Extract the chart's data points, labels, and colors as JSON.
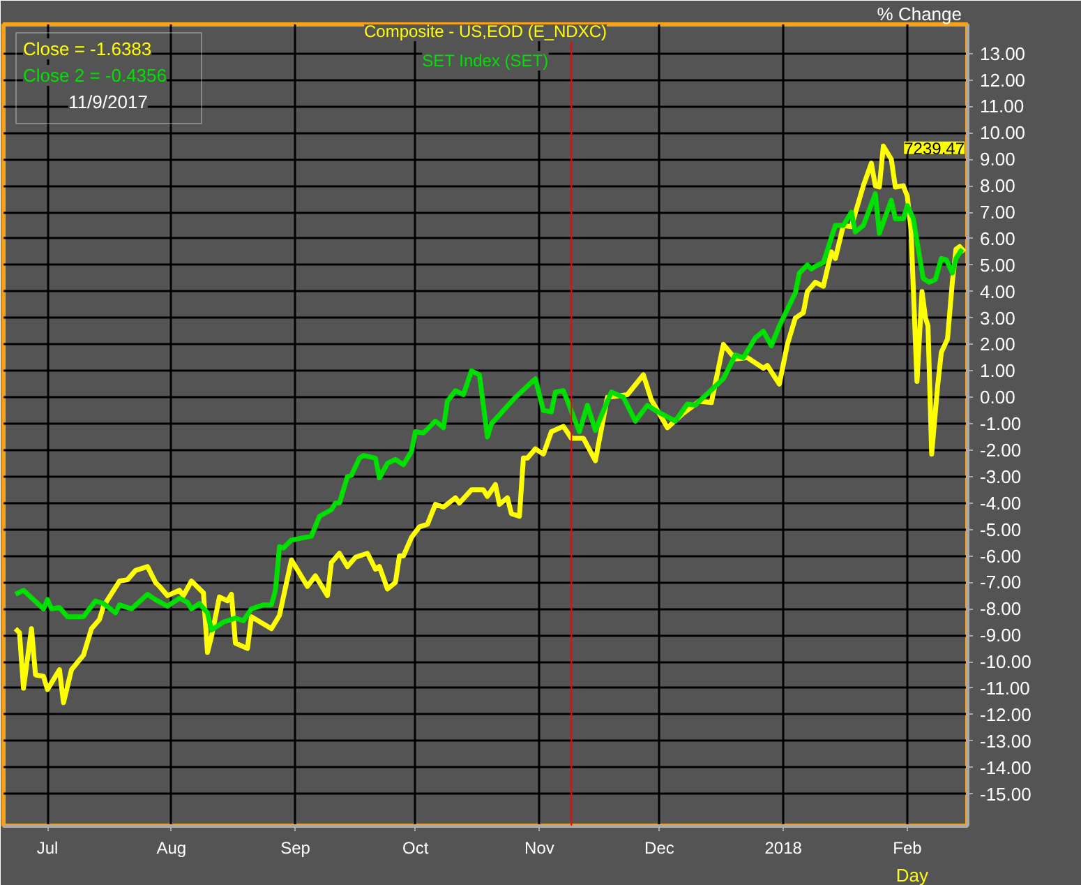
{
  "chart_data": {
    "type": "line",
    "xlabel": "Day",
    "ylabel": "% Change",
    "xlim": [
      "2017-06-20",
      "2018-02-16"
    ],
    "ylim": [
      -16.2,
      14.1
    ],
    "xticks": [
      {
        "value": "2017-07-01",
        "label": "Jul"
      },
      {
        "value": "2017-08-01",
        "label": "Aug"
      },
      {
        "value": "2017-09-01",
        "label": "Sep"
      },
      {
        "value": "2017-10-01",
        "label": "Oct"
      },
      {
        "value": "2017-11-01",
        "label": "Nov"
      },
      {
        "value": "2017-12-01",
        "label": "Dec"
      },
      {
        "value": "2018-01-01",
        "label": "2018"
      },
      {
        "value": "2018-02-01",
        "label": "Feb"
      }
    ],
    "yticks": [
      {
        "value": 13,
        "label": "13.00"
      },
      {
        "value": 12,
        "label": "12.00"
      },
      {
        "value": 11,
        "label": "11.00"
      },
      {
        "value": 10,
        "label": "10.00"
      },
      {
        "value": 9,
        "label": "9.00"
      },
      {
        "value": 8,
        "label": "8.00"
      },
      {
        "value": 7,
        "label": "7.00"
      },
      {
        "value": 6,
        "label": "6.00"
      },
      {
        "value": 5,
        "label": "5.00"
      },
      {
        "value": 4,
        "label": "4.00"
      },
      {
        "value": 3,
        "label": "3.00"
      },
      {
        "value": 2,
        "label": "2.00"
      },
      {
        "value": 1,
        "label": "1.00"
      },
      {
        "value": 0,
        "label": "0.00"
      },
      {
        "value": -1,
        "label": "-1.00"
      },
      {
        "value": -2,
        "label": "-2.00"
      },
      {
        "value": -3,
        "label": "-3.00"
      },
      {
        "value": -4,
        "label": "-4.00"
      },
      {
        "value": -5,
        "label": "-5.00"
      },
      {
        "value": -6,
        "label": "-6.00"
      },
      {
        "value": -7,
        "label": "-7.00"
      },
      {
        "value": -8,
        "label": "-8.00"
      },
      {
        "value": -9,
        "label": "-9.00"
      },
      {
        "value": -10,
        "label": "-10.00"
      },
      {
        "value": -11,
        "label": "-11.00"
      },
      {
        "value": -12,
        "label": "-12.00"
      },
      {
        "value": -13,
        "label": "-13.00"
      },
      {
        "value": -14,
        "label": "-14.00"
      },
      {
        "value": -15,
        "label": "-15.00"
      }
    ],
    "grid": true,
    "legend": "top",
    "marker": "none",
    "line_style": "solid",
    "series": [
      {
        "name": "Composite - US,EOD (E_NDXC)",
        "color": "#ffff00",
        "x": [
          "2017-06-23",
          "2017-06-24",
          "2017-06-25",
          "2017-06-27",
          "2017-06-28",
          "2017-06-30",
          "2017-07-01",
          "2017-07-04",
          "2017-07-05",
          "2017-07-07",
          "2017-07-10",
          "2017-07-12",
          "2017-07-14",
          "2017-07-15",
          "2017-07-19",
          "2017-07-21",
          "2017-07-23",
          "2017-07-26",
          "2017-07-28",
          "2017-07-29",
          "2017-07-31",
          "2017-08-03",
          "2017-08-04",
          "2017-08-06",
          "2017-08-09",
          "2017-08-10",
          "2017-08-11",
          "2017-08-13",
          "2017-08-15",
          "2017-08-16",
          "2017-08-17",
          "2017-08-20",
          "2017-08-21",
          "2017-08-26",
          "2017-08-28",
          "2017-08-31",
          "2017-09-04",
          "2017-09-06",
          "2017-09-09",
          "2017-09-10",
          "2017-09-12",
          "2017-09-14",
          "2017-09-16",
          "2017-09-19",
          "2017-09-21",
          "2017-09-22",
          "2017-09-24",
          "2017-09-26",
          "2017-09-27",
          "2017-09-28",
          "2017-09-30",
          "2017-10-02",
          "2017-10-04",
          "2017-10-06",
          "2017-10-08",
          "2017-10-11",
          "2017-10-12",
          "2017-10-15",
          "2017-10-18",
          "2017-10-19",
          "2017-10-21",
          "2017-10-22",
          "2017-10-24",
          "2017-10-25",
          "2017-10-27",
          "2017-10-28",
          "2017-10-29",
          "2017-10-31",
          "2017-11-02",
          "2017-11-04",
          "2017-11-07",
          "2017-11-09",
          "2017-11-12",
          "2017-11-15",
          "2017-11-18",
          "2017-11-23",
          "2017-11-27",
          "2017-11-29",
          "2017-12-03",
          "2017-12-07",
          "2017-12-11",
          "2017-12-14",
          "2017-12-17",
          "2017-12-20",
          "2017-12-23",
          "2017-12-27",
          "2017-12-28",
          "2017-12-31",
          "2018-01-02",
          "2018-01-04",
          "2018-01-06",
          "2018-01-07",
          "2018-01-09",
          "2018-01-11",
          "2018-01-13",
          "2018-01-14",
          "2018-01-16",
          "2018-01-18",
          "2018-01-21",
          "2018-01-23",
          "2018-01-24",
          "2018-01-25",
          "2018-01-26",
          "2018-01-28",
          "2018-01-29",
          "2018-01-31",
          "2018-02-01",
          "2018-02-01T22:00",
          "2018-02-03T10:00",
          "2018-02-04T16:00",
          "2018-02-05T13:00",
          "2018-02-06T04:00",
          "2018-02-07T02:00",
          "2018-02-08T15:00",
          "2018-02-09T12:00",
          "2018-02-11T01:00",
          "2018-02-12T06:00",
          "2018-02-13T04:00",
          "2018-02-14T02:00",
          "2018-02-15T07:00"
        ],
        "values": [
          -8.75,
          -8.9,
          -11.0,
          -8.75,
          -10.5,
          -10.55,
          -11.05,
          -10.3,
          -11.55,
          -10.3,
          -9.75,
          -8.75,
          -8.4,
          -7.9,
          -6.95,
          -6.9,
          -6.55,
          -6.4,
          -7.0,
          -7.15,
          -7.5,
          -7.3,
          -7.5,
          -6.95,
          -7.4,
          -9.65,
          -9.05,
          -7.55,
          -7.7,
          -7.45,
          -9.3,
          -9.5,
          -8.3,
          -8.75,
          -8.25,
          -6.15,
          -7.15,
          -6.75,
          -7.5,
          -6.25,
          -5.9,
          -6.4,
          -6.05,
          -5.9,
          -6.5,
          -6.4,
          -7.25,
          -7.0,
          -6.0,
          -6.0,
          -5.3,
          -4.9,
          -4.8,
          -4.05,
          -4.15,
          -3.8,
          -4.0,
          -3.5,
          -3.5,
          -3.75,
          -3.3,
          -4.05,
          -3.8,
          -4.4,
          -4.5,
          -2.3,
          -2.3,
          -1.95,
          -2.15,
          -1.3,
          -1.1,
          -1.55,
          -1.55,
          -2.4,
          0,
          0.1,
          0.85,
          -0.1,
          -1.15,
          -0.6,
          -0.15,
          -0.2,
          2.0,
          1.45,
          1.5,
          1.1,
          1.2,
          0.5,
          2.0,
          3.0,
          3.2,
          4.0,
          4.35,
          4.2,
          5.5,
          5.25,
          6.5,
          6.45,
          8.0,
          8.85,
          8.0,
          7.95,
          9.5,
          9.0,
          7.95,
          8.0,
          7.6,
          6.35,
          0.6,
          4.0,
          3.0,
          2.7,
          -2.15,
          0.5,
          1.7,
          2.2,
          4.35,
          5.6,
          5.7,
          5.5
        ]
      },
      {
        "name": "SET Index (SET)",
        "color": "#00e000",
        "x": [
          "2017-06-23",
          "2017-06-25",
          "2017-06-30",
          "2017-07-01",
          "2017-07-02",
          "2017-07-04",
          "2017-07-06",
          "2017-07-10",
          "2017-07-13",
          "2017-07-15",
          "2017-07-18",
          "2017-07-19",
          "2017-07-22",
          "2017-07-26",
          "2017-07-28",
          "2017-07-31",
          "2017-08-03",
          "2017-08-05",
          "2017-08-06",
          "2017-08-08",
          "2017-08-10",
          "2017-08-11",
          "2017-08-14",
          "2017-08-17",
          "2017-08-19",
          "2017-08-21",
          "2017-08-24",
          "2017-08-26",
          "2017-08-27",
          "2017-08-28",
          "2017-08-29",
          "2017-08-31",
          "2017-09-05",
          "2017-09-07",
          "2017-09-10",
          "2017-09-11",
          "2017-09-12",
          "2017-09-14",
          "2017-09-15",
          "2017-09-17",
          "2017-09-18",
          "2017-09-21",
          "2017-09-22",
          "2017-09-24",
          "2017-09-26",
          "2017-09-28",
          "2017-09-30",
          "2017-10-01",
          "2017-10-03",
          "2017-10-06",
          "2017-10-08",
          "2017-10-09",
          "2017-10-11",
          "2017-10-13",
          "2017-10-15",
          "2017-10-17",
          "2017-10-19",
          "2017-10-20",
          "2017-10-26",
          "2017-10-31",
          "2017-11-02",
          "2017-11-04",
          "2017-11-05",
          "2017-11-07",
          "2017-11-11",
          "2017-11-13",
          "2017-11-15",
          "2017-11-18",
          "2017-11-19",
          "2017-11-22",
          "2017-11-25",
          "2017-11-28",
          "2017-11-30",
          "2017-12-05",
          "2017-12-08",
          "2017-12-10",
          "2017-12-12",
          "2017-12-17",
          "2017-12-20",
          "2017-12-22",
          "2017-12-25",
          "2017-12-27",
          "2017-12-29",
          "2017-12-31",
          "2018-01-04",
          "2018-01-05",
          "2018-01-07",
          "2018-01-08",
          "2018-01-09",
          "2018-01-11",
          "2018-01-14",
          "2018-01-16",
          "2018-01-18",
          "2018-01-19",
          "2018-01-21",
          "2018-01-24",
          "2018-01-25",
          "2018-01-28",
          "2018-01-29",
          "2018-01-31",
          "2018-02-01",
          "2018-02-02T12:00",
          "2018-02-04T23:00",
          "2018-02-06T11:00",
          "2018-02-08",
          "2018-02-09T12:00",
          "2018-02-10T18:00",
          "2018-02-12T06:00",
          "2018-02-13T04:00",
          "2018-02-14T17:00"
        ],
        "values": [
          -7.45,
          -7.3,
          -8.0,
          -7.65,
          -8.0,
          -7.95,
          -8.3,
          -8.3,
          -7.7,
          -7.8,
          -8.15,
          -7.85,
          -8.0,
          -7.45,
          -7.65,
          -7.9,
          -7.6,
          -7.75,
          -8.0,
          -7.8,
          -8.15,
          -8.8,
          -8.5,
          -8.35,
          -8.45,
          -8.0,
          -7.85,
          -7.85,
          -7.3,
          -5.65,
          -5.7,
          -5.4,
          -5.25,
          -4.5,
          -4.25,
          -4.0,
          -4.0,
          -3.0,
          -2.95,
          -2.3,
          -2.2,
          -2.3,
          -3.05,
          -2.5,
          -2.35,
          -2.55,
          -2.05,
          -1.3,
          -1.35,
          -0.9,
          -1.15,
          -0.15,
          0.25,
          0.1,
          1.0,
          0.85,
          -1.5,
          -1.0,
          0,
          0.7,
          -0.5,
          -0.55,
          0.2,
          0.25,
          -1.3,
          -0.3,
          -1.25,
          -0.15,
          0.2,
          0,
          -0.9,
          -0.3,
          -0.5,
          -0.9,
          -0.25,
          -0.3,
          0,
          0.7,
          1.6,
          1.5,
          2.25,
          2.5,
          1.95,
          2.7,
          3.95,
          4.7,
          5.0,
          4.85,
          4.95,
          5.1,
          6.5,
          6.5,
          7.0,
          6.25,
          6.5,
          7.7,
          6.2,
          7.45,
          6.75,
          6.75,
          7.25,
          6.75,
          4.5,
          4.35,
          4.45,
          5.25,
          5.2,
          4.7,
          5.25,
          5.6
        ]
      }
    ],
    "ref_lines": [
      {
        "axis": "x",
        "value": "2017-11-09",
        "color": "#ff0000"
      }
    ],
    "annotations": [
      "Close = -1.6383",
      "Close 2 = -0.4356",
      "11/9/2017",
      "7239.47"
    ]
  }
}
